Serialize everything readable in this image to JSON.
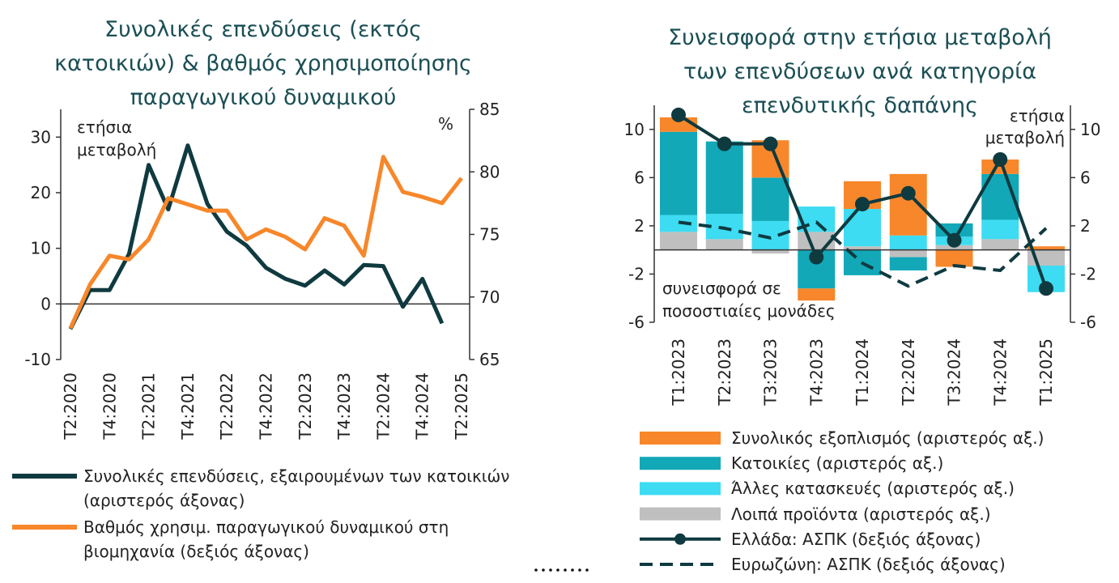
{
  "chart_data": [
    {
      "type": "line",
      "title": [
        "Συνολικές επενδύσεις (εκτός",
        "κατοικιών) & βαθμός χρησιμοποίησης",
        "παραγωγικού δυναμικού"
      ],
      "left_axis_label": [
        "ετήσια",
        "μεταβολή"
      ],
      "right_axis_label": "%",
      "categories": [
        "T2:2020",
        null,
        "T4:2020",
        null,
        "T2:2021",
        null,
        "T4:2021",
        null,
        "T2:2022",
        null,
        "T4:2022",
        null,
        "T2:2023",
        null,
        "T4:2023",
        null,
        "T2:2024",
        null,
        "T4:2024",
        null,
        "T2:2025"
      ],
      "ylim": [
        -10,
        35
      ],
      "yticks": [
        -10,
        0,
        10,
        20,
        30
      ],
      "y2lim": [
        65,
        85
      ],
      "y2ticks": [
        65,
        70,
        75,
        80,
        85
      ],
      "series": [
        {
          "name": "Συνολικές επενδύσεις, εξαιρουμένων των κατοικιών (αριστερός άξονας)",
          "color": "#0f3a40",
          "axis": "y",
          "values": [
            -4.5,
            2.5,
            2.5,
            9,
            25,
            17,
            28.5,
            18,
            13,
            10.5,
            6.5,
            4.5,
            3.3,
            6,
            3.5,
            7,
            6.8,
            -0.5,
            4.5,
            -3.5,
            null
          ]
        },
        {
          "name": "Βαθμός χρησιμ. παραγωγικού δυναμικού στη βιομηχανία (δεξιός άξονας)",
          "color": "#f7872a",
          "axis": "y2",
          "values": [
            67.5,
            71,
            73.3,
            73,
            74.6,
            77.9,
            77.4,
            76.9,
            76.9,
            74.6,
            75.4,
            74.8,
            73.8,
            76.3,
            75.7,
            73.3,
            81.2,
            78.4,
            78,
            77.5,
            79.5
          ]
        }
      ]
    },
    {
      "type": "bar",
      "title": [
        "Συνεισφορά στην ετήσια μεταβολή",
        "των επενδύσεων ανά κατηγορία",
        "επενδυτικής δαπάνης"
      ],
      "right_axis_label": [
        "ετήσια",
        "μεταβολή"
      ],
      "annotation": [
        "συνεισφορά σε",
        "ποσοστιαίες μονάδες"
      ],
      "categories": [
        "T1:2023",
        "T2:2023",
        "T3:2023",
        "T4:2023",
        "T1:2024",
        "T2:2024",
        "T3:2024",
        "T4:2024",
        "T1:2025"
      ],
      "ylim": [
        -6,
        12
      ],
      "yticks": [
        -6,
        -2,
        2,
        6,
        10
      ],
      "y2lim": [
        -6,
        12
      ],
      "y2ticks": [
        -6,
        -2,
        2,
        6,
        10
      ],
      "stacked": true,
      "series": [
        {
          "name": "Συνολικός εξοπλισμός (αριστερός αξ.)",
          "color": "#f7872a",
          "type": "bar",
          "axis": "y",
          "values": [
            1.2,
            0,
            3.1,
            -1,
            2.3,
            5.1,
            -1.4,
            1.2,
            0.3
          ]
        },
        {
          "name": "Κατοικίες (αριστερός αξ.)",
          "color": "#12a8b8",
          "type": "bar",
          "axis": "y",
          "values": [
            6.9,
            6,
            3.6,
            -3.2,
            -2.1,
            -1.1,
            1.1,
            3.8,
            0
          ]
        },
        {
          "name": "Άλλες κατασκευές (αριστερός αξ.)",
          "color": "#3ddcf2",
          "type": "bar",
          "axis": "y",
          "values": [
            1.4,
            2.1,
            2.4,
            2.1,
            3.1,
            1.2,
            0.7,
            1.6,
            -2.2
          ]
        },
        {
          "name": "Λοιπά προϊόντα (αριστερός αξ.)",
          "color": "#bfbfbf",
          "type": "bar",
          "axis": "y",
          "values": [
            1.5,
            0.9,
            -0.3,
            1.5,
            0.3,
            -0.6,
            0.4,
            0.9,
            -1.3
          ]
        },
        {
          "name": "Ελλάδα: ΑΣΠΚ (δεξιός άξονας)",
          "color": "#0f3a40",
          "type": "line",
          "marker": true,
          "axis": "y2",
          "values": [
            11.2,
            8.8,
            8.8,
            -0.6,
            3.8,
            4.7,
            0.8,
            7.5,
            -3.2
          ]
        },
        {
          "name": "Ευρωζώνη: ΑΣΠΚ (δεξιός άξονας)",
          "color": "#0f3a40",
          "type": "line",
          "dashed": true,
          "axis": "y2",
          "values": [
            2.3,
            1.8,
            1,
            2.3,
            -1.1,
            -3,
            -1.3,
            -1.7,
            1.8
          ]
        }
      ]
    }
  ]
}
